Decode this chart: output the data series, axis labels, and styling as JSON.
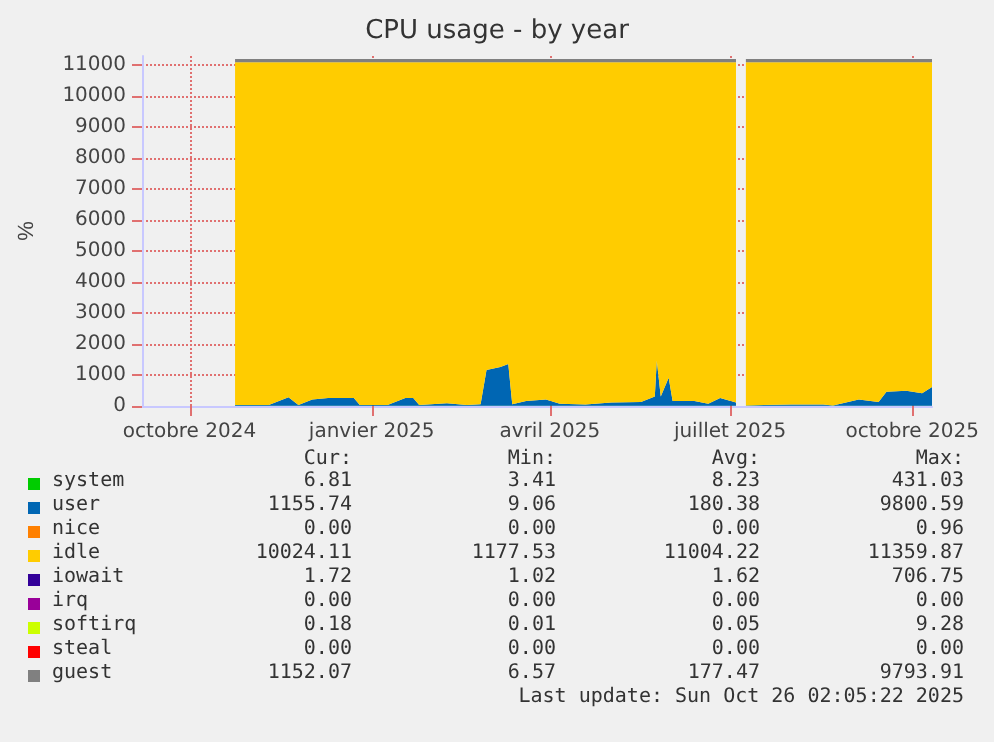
{
  "chart_data": {
    "type": "area",
    "stacked": true,
    "title": "CPU usage - by year",
    "ylabel": "%",
    "x": [
      "2024-11-08",
      "2024-11-25",
      "2024-12-05",
      "2024-12-10",
      "2024-12-17",
      "2024-12-25",
      "2025-01-02",
      "2025-01-07",
      "2025-01-10",
      "2025-01-24",
      "2025-02-02",
      "2025-02-06",
      "2025-02-09",
      "2025-02-23",
      "2025-03-05",
      "2025-03-12",
      "2025-03-15",
      "2025-03-22",
      "2025-03-26",
      "2025-03-28",
      "2025-04-04",
      "2025-04-14",
      "2025-04-21",
      "2025-05-04",
      "2025-05-17",
      "2025-06-01",
      "2025-06-08",
      "2025-06-09",
      "2025-06-11",
      "2025-06-15",
      "2025-06-17",
      "2025-06-28",
      "2025-07-05",
      "2025-07-11",
      "2025-07-19",
      "2025-07-21",
      "2025-07-24",
      "2025-08-16",
      "2025-09-01",
      "2025-09-06",
      "2025-09-19",
      "2025-09-29",
      "2025-10-03",
      "2025-10-13",
      "2025-10-21",
      "2025-10-26"
    ],
    "series": [
      {
        "name": "system",
        "color": "#00cc00",
        "values": [
          10,
          10,
          10,
          10,
          10,
          10,
          10,
          10,
          10,
          10,
          10,
          10,
          10,
          10,
          10,
          10,
          10,
          10,
          10,
          10,
          10,
          10,
          10,
          10,
          10,
          10,
          10,
          10,
          10,
          10,
          10,
          10,
          10,
          10,
          10,
          null,
          10,
          10,
          10,
          10,
          10,
          10,
          10,
          10,
          10,
          10
        ]
      },
      {
        "name": "user",
        "color": "#0066b3",
        "values": [
          20,
          20,
          270,
          20,
          200,
          250,
          250,
          250,
          20,
          20,
          250,
          250,
          20,
          80,
          20,
          50,
          1150,
          1250,
          1350,
          50,
          150,
          200,
          60,
          40,
          100,
          120,
          300,
          1450,
          300,
          900,
          150,
          150,
          60,
          250,
          100,
          null,
          10,
          40,
          40,
          10,
          200,
          120,
          450,
          480,
          400,
          600
        ]
      },
      {
        "name": "nice",
        "color": "#ff8000",
        "values": [
          null,
          null,
          null,
          null,
          null,
          null,
          null,
          null,
          null,
          null,
          null,
          null,
          null,
          null,
          null,
          null,
          null,
          null,
          null,
          null,
          null,
          null,
          null,
          null,
          null,
          null,
          null,
          null,
          null,
          null,
          null,
          null,
          null,
          null,
          null,
          null,
          null,
          null,
          null,
          null,
          null,
          null,
          null,
          null,
          null,
          null
        ]
      },
      {
        "name": "idle",
        "color": "#ffcc00",
        "values": [
          11070,
          11070,
          10820,
          11070,
          10890,
          10840,
          10840,
          10840,
          11070,
          11070,
          10840,
          10840,
          11070,
          11010,
          11070,
          11040,
          9940,
          9840,
          9740,
          11040,
          10940,
          10890,
          11030,
          11050,
          10990,
          10970,
          10790,
          9640,
          10790,
          10190,
          10940,
          10940,
          11030,
          10840,
          10990,
          null,
          11080,
          11050,
          11050,
          11080,
          10890,
          10970,
          10640,
          10610,
          10690,
          10490
        ]
      },
      {
        "name": "iowait",
        "color": "#330099",
        "values": [
          null,
          null,
          null,
          null,
          null,
          null,
          null,
          null,
          null,
          null,
          null,
          null,
          null,
          null,
          null,
          null,
          null,
          null,
          null,
          null,
          null,
          null,
          null,
          null,
          null,
          null,
          null,
          null,
          null,
          null,
          null,
          null,
          null,
          null,
          null,
          null,
          null,
          null,
          null,
          null,
          null,
          null,
          null,
          null,
          null,
          null
        ]
      },
      {
        "name": "irq",
        "color": "#990099",
        "values": [
          null,
          null,
          null,
          null,
          null,
          null,
          null,
          null,
          null,
          null,
          null,
          null,
          null,
          null,
          null,
          null,
          null,
          null,
          null,
          null,
          null,
          null,
          null,
          null,
          null,
          null,
          null,
          null,
          null,
          null,
          null,
          null,
          null,
          null,
          null,
          null,
          null,
          null,
          null,
          null,
          null,
          null,
          null,
          null,
          null,
          null
        ]
      },
      {
        "name": "softirq",
        "color": "#ccff00",
        "values": [
          null,
          null,
          null,
          null,
          null,
          null,
          null,
          null,
          null,
          null,
          null,
          null,
          null,
          null,
          null,
          null,
          null,
          null,
          null,
          null,
          null,
          null,
          null,
          null,
          null,
          null,
          null,
          null,
          null,
          null,
          null,
          null,
          null,
          null,
          null,
          null,
          null,
          null,
          null,
          null,
          null,
          null,
          null,
          null,
          null,
          null
        ]
      },
      {
        "name": "steal",
        "color": "#ff0000",
        "values": [
          null,
          null,
          null,
          null,
          null,
          null,
          null,
          null,
          null,
          null,
          null,
          null,
          null,
          null,
          null,
          null,
          null,
          null,
          null,
          null,
          null,
          null,
          null,
          null,
          null,
          null,
          null,
          null,
          null,
          null,
          null,
          null,
          null,
          null,
          null,
          null,
          null,
          null,
          null,
          null,
          null,
          null,
          null,
          null,
          null,
          null
        ]
      },
      {
        "name": "guest",
        "color": "#808080",
        "values": [
          100,
          100,
          100,
          100,
          100,
          100,
          100,
          100,
          100,
          100,
          100,
          100,
          100,
          100,
          100,
          100,
          100,
          100,
          100,
          100,
          100,
          100,
          100,
          100,
          100,
          100,
          100,
          100,
          100,
          100,
          100,
          100,
          100,
          100,
          100,
          null,
          100,
          100,
          100,
          100,
          100,
          100,
          100,
          100,
          100,
          100
        ]
      }
    ],
    "xlim": [
      "2024-09-22",
      "2025-10-26"
    ],
    "xticks": [
      {
        "value": "2024-10-16",
        "label": "octobre 2024"
      },
      {
        "value": "2025-01-16",
        "label": "janvier 2025"
      },
      {
        "value": "2025-04-16",
        "label": "avril 2025"
      },
      {
        "value": "2025-07-16",
        "label": "juillet 2025"
      },
      {
        "value": "2025-10-16",
        "label": "octobre 2025"
      }
    ],
    "ylim": [
      0,
      11300
    ],
    "yticks": [
      0,
      1000,
      2000,
      3000,
      4000,
      5000,
      6000,
      7000,
      8000,
      9000,
      10000,
      11000
    ],
    "grid": true,
    "legend": "bottom",
    "annotations": [
      "Cur:",
      "Min:",
      "Avg:",
      "Max:",
      "6.81",
      "3.41",
      "8.23",
      "431.03",
      "1155.74",
      "9.06",
      "180.38",
      "9800.59",
      "0.00",
      "0.00",
      "0.00",
      "0.96",
      "10024.11",
      "1177.53",
      "11004.22",
      "11359.87",
      "1.72",
      "1.02",
      "1.62",
      "706.75",
      "0.00",
      "0.00",
      "0.00",
      "0.00",
      "0.18",
      "0.01",
      "0.05",
      "9.28",
      "0.00",
      "0.00",
      "0.00",
      "0.00",
      "1152.07",
      "6.57",
      "177.47",
      "9793.91",
      "Last update: Sun Oct 26 02:05:22 2025"
    ]
  }
}
